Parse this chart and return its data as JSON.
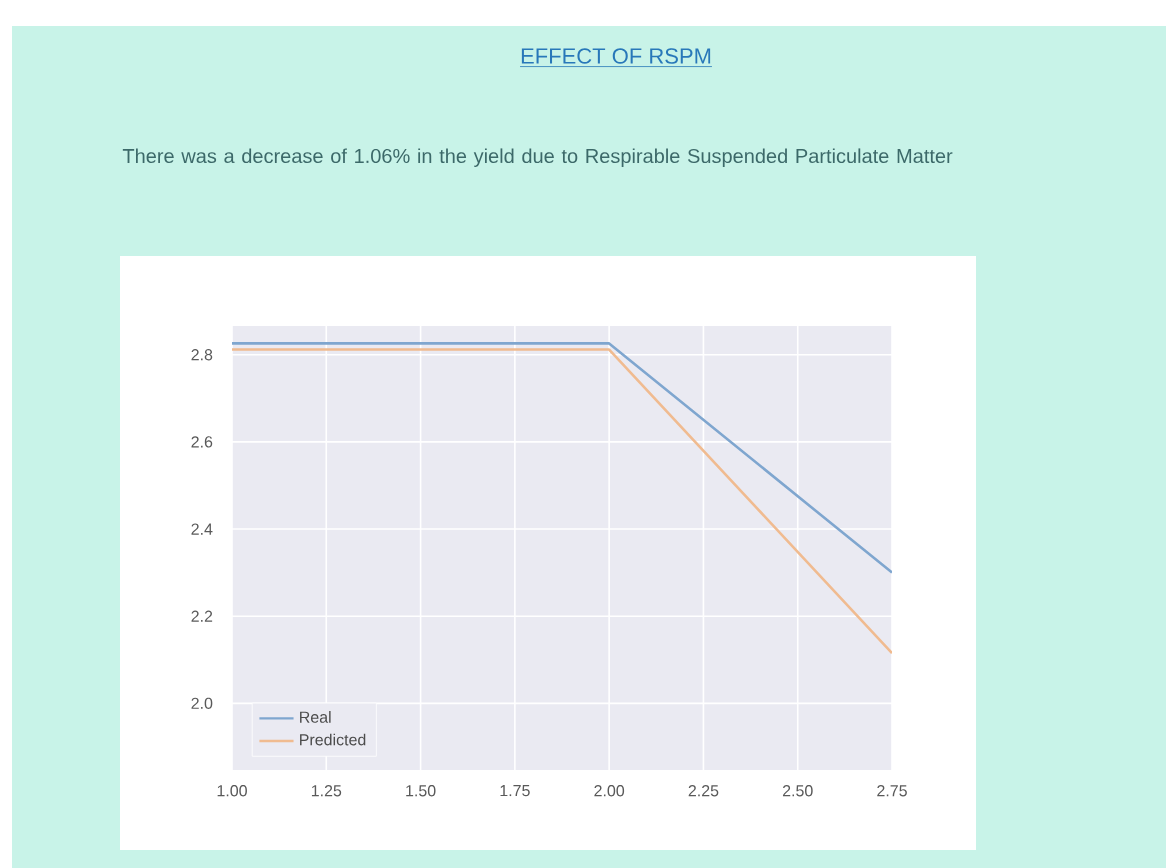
{
  "chart_data": {
    "type": "line",
    "title": "EFFECT OF RSPM",
    "subtitle": "There was a decrease of 1.06% in the yield due to Respirable Suspended Particulate Matter",
    "x": [
      1,
      2,
      2.75
    ],
    "series": [
      {
        "name": "Real",
        "color": "#7fa6cf",
        "values": [
          2.826,
          2.826,
          2.3
        ]
      },
      {
        "name": "Predicted",
        "color": "#f0bb90",
        "values": [
          2.812,
          2.812,
          2.115
        ]
      }
    ],
    "xlim": [
      1,
      2.75
    ],
    "xticks": [
      {
        "value": 1,
        "label": "1.00"
      },
      1.25,
      {
        "value": 1.5,
        "label": "1.50"
      },
      1.75,
      {
        "value": 2,
        "label": "2.00"
      },
      2.25,
      {
        "value": 2.5,
        "label": "2.50"
      },
      2.75
    ],
    "ylim": [
      1.847,
      2.866
    ],
    "yticks": [
      {
        "value": 2,
        "label": "2.0"
      },
      2.2,
      2.4,
      2.6,
      2.8
    ],
    "grid": true,
    "legend": "bottom left",
    "marker": "none",
    "line_style": "solid"
  }
}
